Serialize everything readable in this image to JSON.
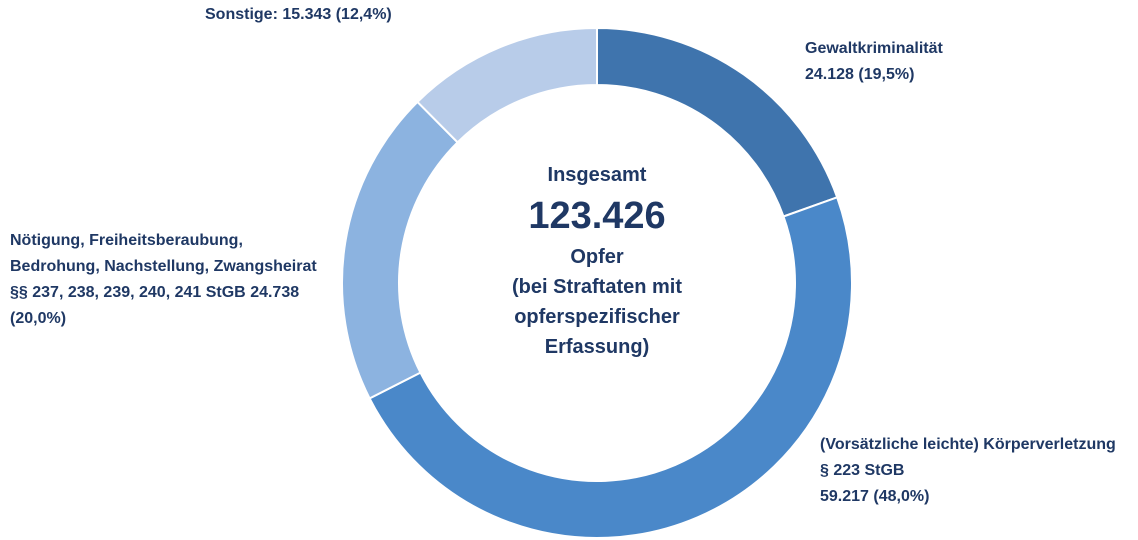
{
  "chart_data": {
    "type": "donut",
    "categories": [
      "Gewaltkriminalität",
      "(Vorsätzliche leichte) Körperverletzung § 223 StGB",
      "Nötigung, Freiheitsberaubung, Bedrohung, Nachstellung, Zwangsheirat §§ 237, 238, 239, 240, 241 StGB",
      "Sonstige:"
    ],
    "values": [
      24128,
      59217,
      24738,
      15343
    ],
    "value_labels": [
      "24.128 (19,5%)",
      "59.217 (48,0%)",
      "24.738 (20,0%)",
      "15.343 (12,4%)"
    ],
    "colors": [
      "#3f74ad",
      "#4a88c9",
      "#8cb3e0",
      "#b8cce9"
    ],
    "center_text": {
      "heading": "Insgesamt",
      "total": "123.426",
      "unit": "Opfer",
      "lines": [
        "(bei Straftaten mit",
        "opferspezifischer",
        "Erfassung)"
      ]
    }
  }
}
